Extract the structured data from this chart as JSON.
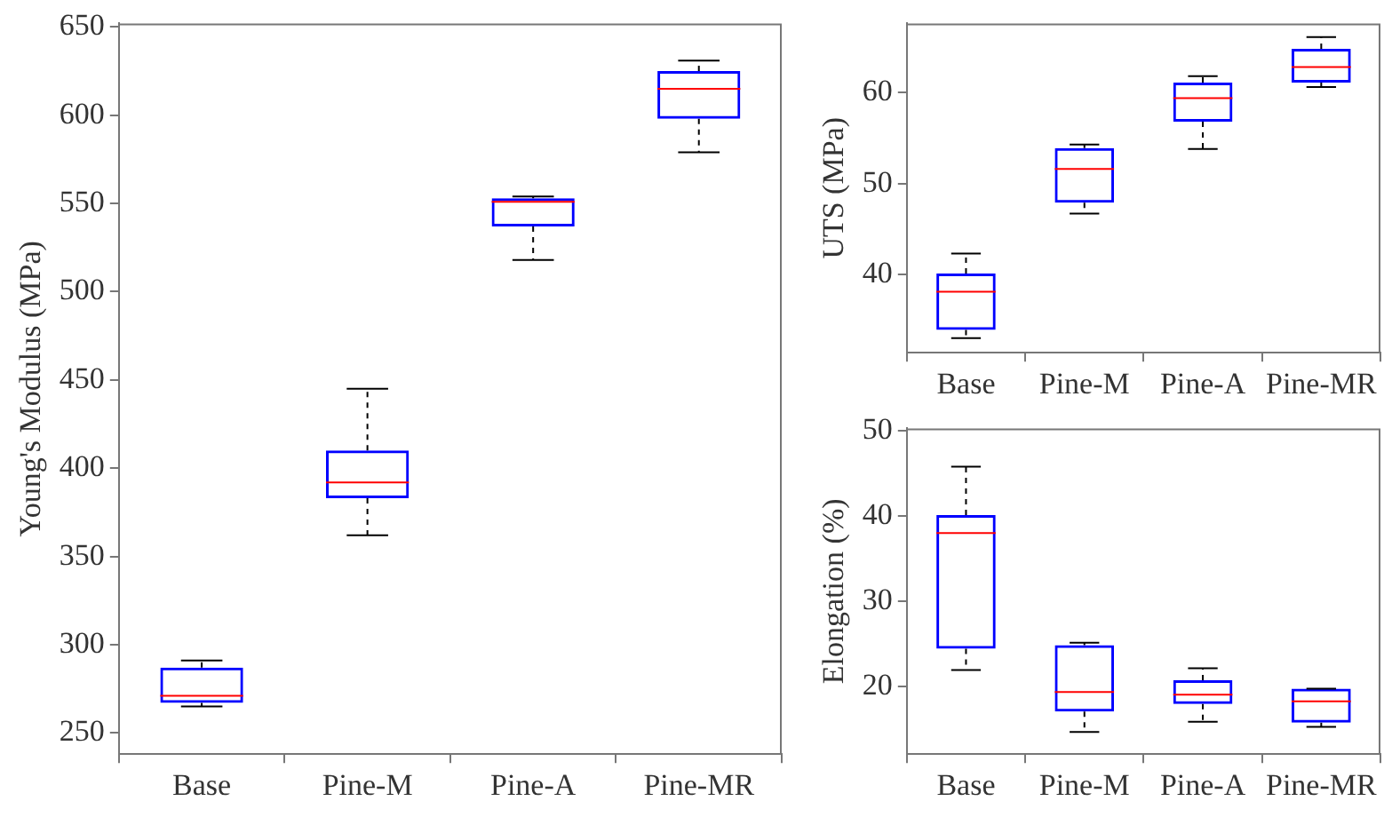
{
  "chart_data": [
    {
      "type": "box",
      "categories": [
        "Base",
        "Pine-M",
        "Pine-A",
        "Pine-MR"
      ],
      "ylabel": "Young's Modulus (MPa)",
      "ylim": [
        238,
        652
      ],
      "yticks": [
        250,
        300,
        350,
        400,
        450,
        500,
        550,
        600,
        650
      ],
      "series": [
        {
          "color": "#0000ff",
          "boxes": [
            {
              "low": 265,
              "q1": 267,
              "median": 271,
              "q3": 287,
              "high": 291
            },
            {
              "low": 362,
              "q1": 383,
              "median": 392,
              "q3": 410,
              "high": 445
            },
            {
              "low": 518,
              "q1": 537,
              "median": 551,
              "q3": 553,
              "high": 554
            },
            {
              "low": 579,
              "q1": 598,
              "median": 615,
              "q3": 625,
              "high": 631
            }
          ]
        }
      ]
    },
    {
      "type": "box",
      "categories": [
        "Base",
        "Pine-M",
        "Pine-A",
        "Pine-MR"
      ],
      "ylabel": "UTS (MPa)",
      "ylim": [
        31.4,
        67.6
      ],
      "yticks": [
        40,
        50,
        60
      ],
      "series": [
        {
          "color": "#0000ff",
          "boxes": [
            {
              "low": 33.0,
              "q1": 33.9,
              "median": 38.1,
              "q3": 40.1,
              "high": 42.3
            },
            {
              "low": 46.7,
              "q1": 47.9,
              "median": 51.6,
              "q3": 53.9,
              "high": 54.3
            },
            {
              "low": 53.8,
              "q1": 56.8,
              "median": 59.4,
              "q3": 61.1,
              "high": 61.8
            },
            {
              "low": 60.6,
              "q1": 61.1,
              "median": 62.8,
              "q3": 64.8,
              "high": 66.1
            }
          ]
        }
      ]
    },
    {
      "type": "box",
      "categories": [
        "Base",
        "Pine-M",
        "Pine-A",
        "Pine-MR"
      ],
      "ylabel": "Elongation (%)",
      "ylim": [
        12,
        50.3
      ],
      "yticks": [
        20,
        30,
        40,
        50
      ],
      "series": [
        {
          "color": "#0000ff",
          "boxes": [
            {
              "low": 21.9,
              "q1": 24.4,
              "median": 38.0,
              "q3": 40.1,
              "high": 45.8
            },
            {
              "low": 14.6,
              "q1": 17.0,
              "median": 19.3,
              "q3": 24.8,
              "high": 25.1
            },
            {
              "low": 15.8,
              "q1": 17.9,
              "median": 19.0,
              "q3": 20.7,
              "high": 22.1
            },
            {
              "low": 15.2,
              "q1": 15.7,
              "median": 18.2,
              "q3": 19.7,
              "high": 19.7
            }
          ]
        }
      ]
    }
  ]
}
